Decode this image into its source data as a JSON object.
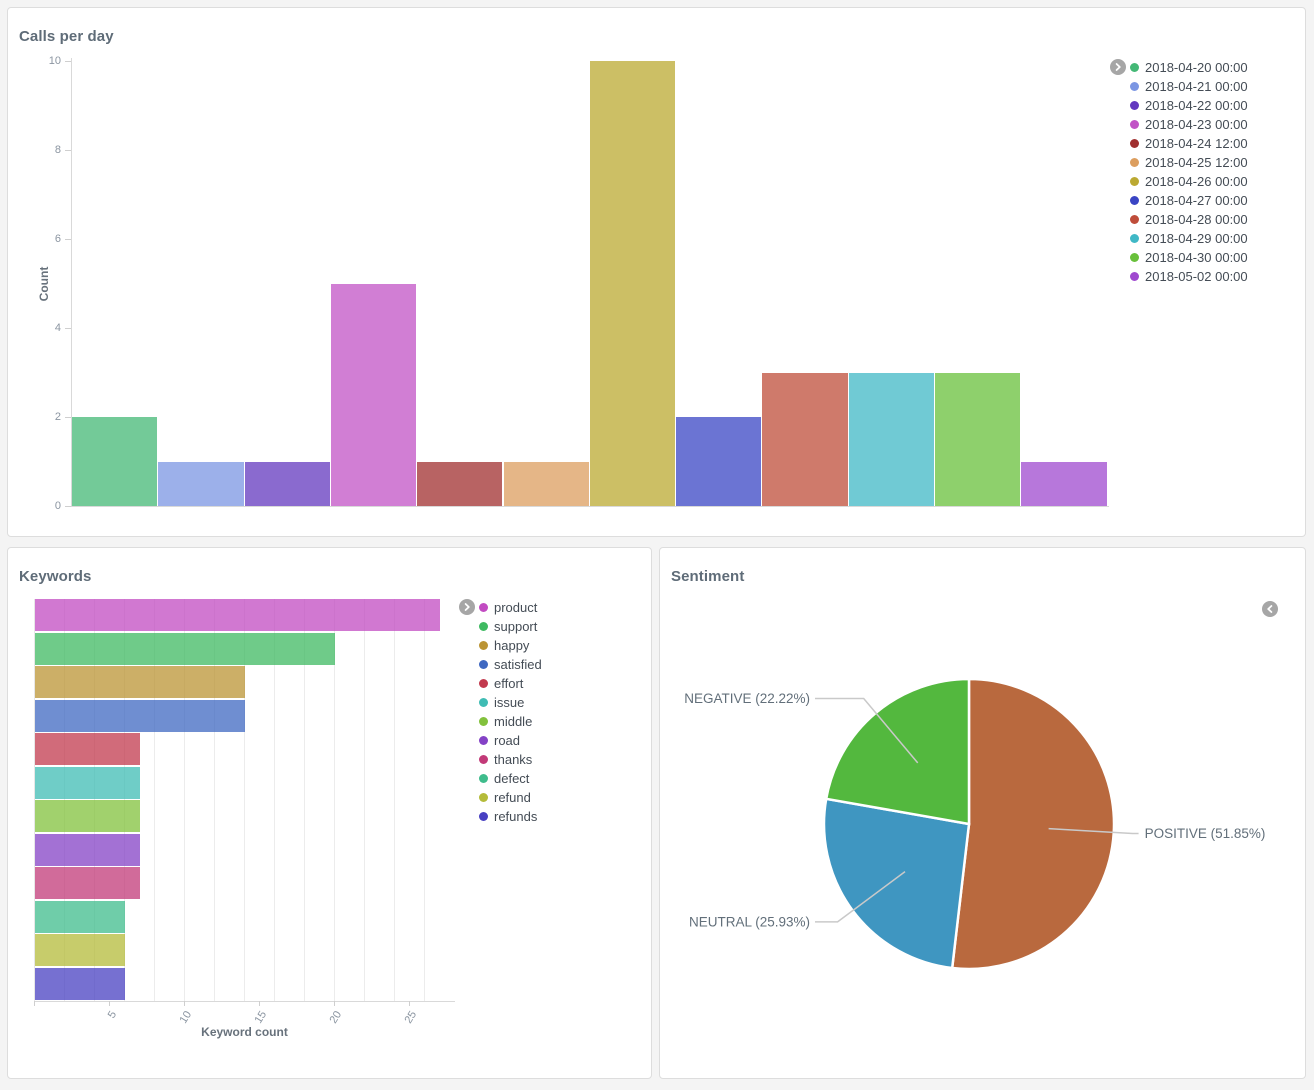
{
  "panels": {
    "calls_per_day": {
      "title": "Calls per day"
    },
    "keywords": {
      "title": "Keywords"
    },
    "sentiment": {
      "title": "Sentiment"
    }
  },
  "icons": {
    "legend_expand": "chevron-right",
    "legend_collapse": "chevron-left"
  },
  "chart_data": [
    {
      "id": "calls_per_day",
      "type": "bar",
      "title": "Calls per day",
      "xlabel": "",
      "ylabel": "Count",
      "ylim": [
        0,
        10
      ],
      "yticks": [
        0,
        2,
        4,
        6,
        8,
        10
      ],
      "grid": false,
      "legend_position": "right",
      "bar_fill_opacity": 0.75,
      "series": [
        {
          "name": "2018-04-20 00:00",
          "color": "#44b876",
          "value": 2
        },
        {
          "name": "2018-04-21 00:00",
          "color": "#7b96e3",
          "value": 1
        },
        {
          "name": "2018-04-22 00:00",
          "color": "#6338bf",
          "value": 1
        },
        {
          "name": "2018-04-23 00:00",
          "color": "#c153c6",
          "value": 5
        },
        {
          "name": "2018-04-24 12:00",
          "color": "#a02f2f",
          "value": 1
        },
        {
          "name": "2018-04-25 12:00",
          "color": "#dc9e5f",
          "value": 1
        },
        {
          "name": "2018-04-26 00:00",
          "color": "#bba932",
          "value": 10
        },
        {
          "name": "2018-04-27 00:00",
          "color": "#3a45c4",
          "value": 2
        },
        {
          "name": "2018-04-28 00:00",
          "color": "#bf4d3a",
          "value": 3
        },
        {
          "name": "2018-04-29 00:00",
          "color": "#40b8c6",
          "value": 3
        },
        {
          "name": "2018-04-30 00:00",
          "color": "#68c03b",
          "value": 3
        },
        {
          "name": "2018-05-02 00:00",
          "color": "#9f49cf",
          "value": 1
        }
      ]
    },
    {
      "id": "keywords",
      "type": "bar-horizontal",
      "title": "Keywords",
      "xlabel": "Keyword count",
      "ylabel": "",
      "xlim": [
        0,
        28
      ],
      "xticks": [
        5,
        10,
        15,
        20,
        25
      ],
      "grid": true,
      "gridline_step": 2,
      "legend_position": "right",
      "bar_fill_opacity": 0.75,
      "series": [
        {
          "name": "product",
          "color": "#c24bc2",
          "value": 27
        },
        {
          "name": "support",
          "color": "#3fba62",
          "value": 20
        },
        {
          "name": "happy",
          "color": "#bb9434",
          "value": 14
        },
        {
          "name": "satisfied",
          "color": "#3f68c1",
          "value": 14
        },
        {
          "name": "effort",
          "color": "#c23a4e",
          "value": 7
        },
        {
          "name": "issue",
          "color": "#3fbcb4",
          "value": 7
        },
        {
          "name": "middle",
          "color": "#82c13c",
          "value": 7
        },
        {
          "name": "road",
          "color": "#8442c6",
          "value": 7
        },
        {
          "name": "thanks",
          "color": "#c23a78",
          "value": 7
        },
        {
          "name": "defect",
          "color": "#3fbc8c",
          "value": 6
        },
        {
          "name": "refund",
          "color": "#b4bb3a",
          "value": 6
        },
        {
          "name": "refunds",
          "color": "#4840c2",
          "value": 6
        }
      ]
    },
    {
      "id": "sentiment",
      "type": "pie",
      "title": "Sentiment",
      "start": "top",
      "direction": "clockwise",
      "slices": [
        {
          "label": "POSITIVE",
          "pct": 51.85,
          "display": "POSITIVE (51.85%)",
          "color": "#b9693e"
        },
        {
          "label": "NEUTRAL",
          "pct": 25.93,
          "display": "NEUTRAL (25.93%)",
          "color": "#3f96c1"
        },
        {
          "label": "NEGATIVE",
          "pct": 22.22,
          "display": "NEGATIVE (22.22%)",
          "color": "#53b83e"
        }
      ]
    }
  ]
}
